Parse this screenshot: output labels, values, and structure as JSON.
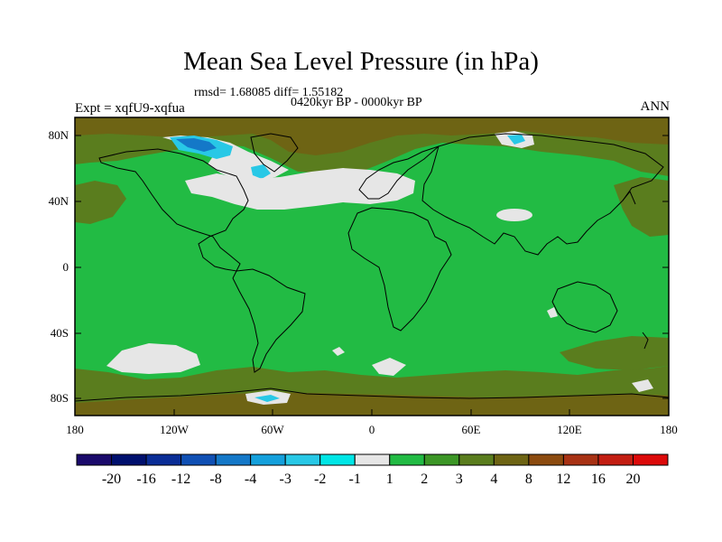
{
  "title": "Mean Sea Level Pressure (in hPa)",
  "subtitle_stats": "rmsd= 1.68085 diff= 1.55182",
  "subtitle_period": "0420kyr BP - 0000kyr BP",
  "experiment": "Expt = xqfU9-xqfua",
  "season": "ANN",
  "y_ticks": [
    "80N",
    "40N",
    "0",
    "40S",
    "80S"
  ],
  "x_ticks": [
    "180",
    "120W",
    "60W",
    "0",
    "60E",
    "120E",
    "180"
  ],
  "colorbar": {
    "labels": [
      "-20",
      "-16",
      "-12",
      "-8",
      "-4",
      "-3",
      "-2",
      "-1",
      "1",
      "2",
      "3",
      "4",
      "8",
      "12",
      "16",
      "20"
    ],
    "colors": [
      "#1a0a6b",
      "#00106e",
      "#0a2d96",
      "#1050b4",
      "#1478c8",
      "#14a0dc",
      "#28c8e6",
      "#00e6e6",
      "#e6e6e6",
      "#22bb44",
      "#3c9626",
      "#5a7d1e",
      "#6e6414",
      "#8c4b0f",
      "#a83214",
      "#c31e12",
      "#dc0a0a"
    ]
  },
  "colors": {
    "ocean_base": "#22bb44",
    "positive_moderate": "#5a7d1e",
    "positive_high": "#6e6414",
    "neutral": "#e6e6e6",
    "negative": "#28c8e6",
    "negative_strong": "#1478c8"
  }
}
